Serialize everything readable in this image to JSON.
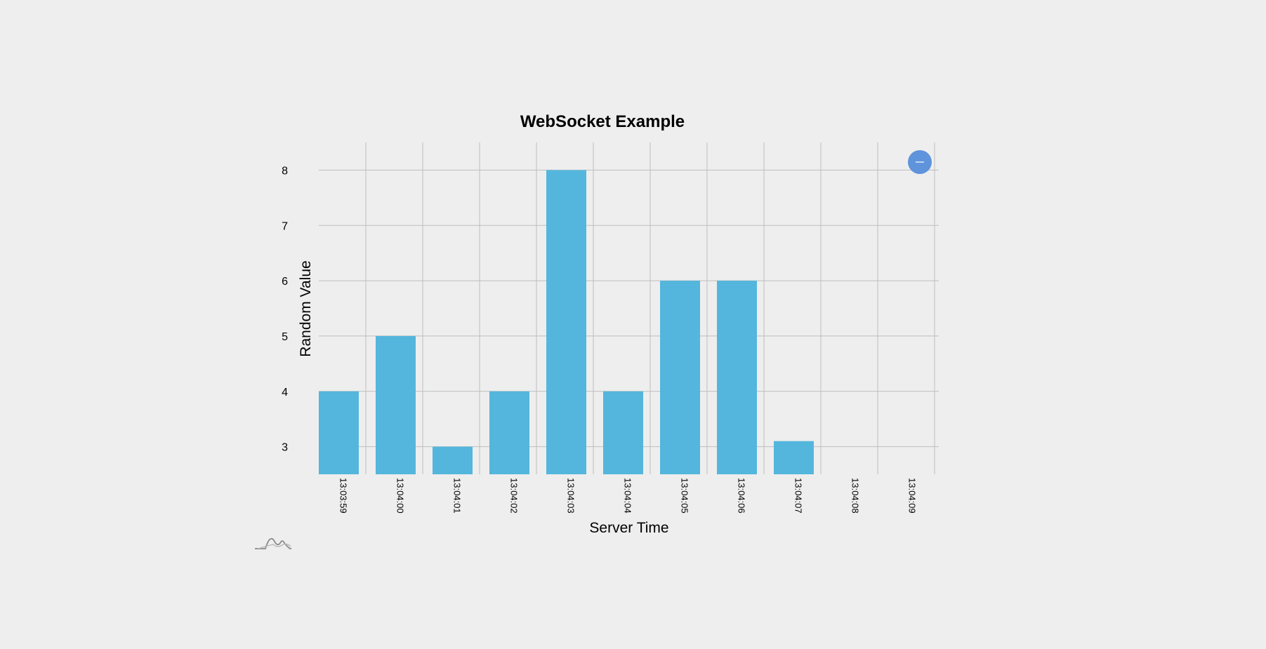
{
  "chart_data": {
    "type": "bar",
    "title": "WebSocket Example",
    "xlabel": "Server Time",
    "ylabel": "Random Value",
    "categories": [
      "13:03:59",
      "13:04:00",
      "13:04:01",
      "13:04:02",
      "13:04:03",
      "13:04:04",
      "13:04:05",
      "13:04:06",
      "13:04:07",
      "13:04:08",
      "13:04:09"
    ],
    "values": [
      4,
      5,
      3,
      4,
      8,
      4,
      6,
      6,
      3.1,
      null,
      null
    ],
    "ylim": [
      2.5,
      8.5
    ],
    "yticks": [
      3,
      4,
      5,
      6,
      7,
      8
    ],
    "grid": true,
    "bar_color": "#54b6dc"
  },
  "controls": {
    "toggle_icon": "minus-icon",
    "toggle_color": "#5f93dc"
  },
  "logo_icon": "bell-curve-logo"
}
